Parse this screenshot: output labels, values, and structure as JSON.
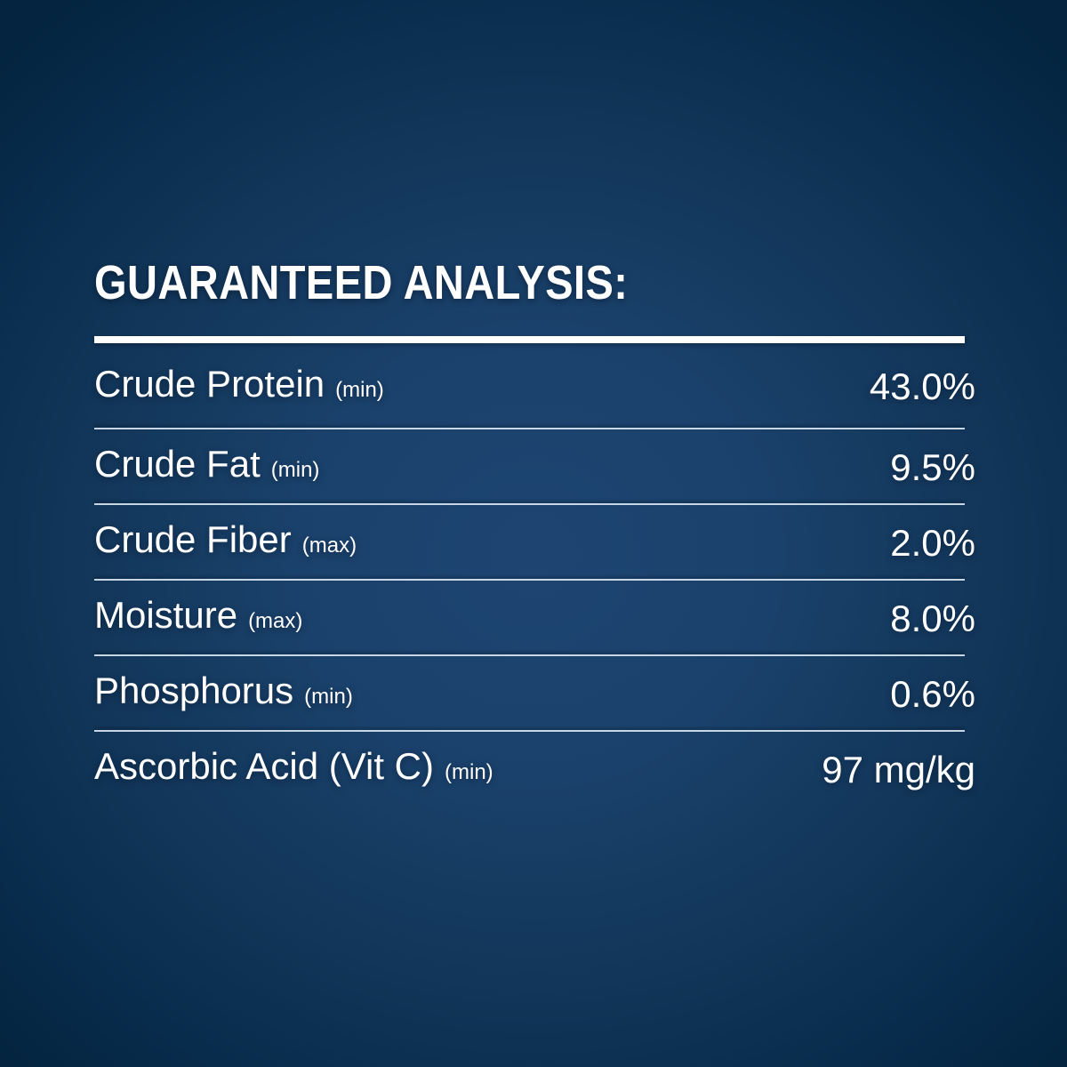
{
  "panel": {
    "background_center_color": "#1e4572",
    "background_edge_color": "#04243f",
    "text_color": "#ffffff",
    "divider_color": "#d6e4f0"
  },
  "analysis": {
    "title": "GUARANTEED ANALYSIS:",
    "rows": [
      {
        "label": "Crude Protein",
        "qualifier": "(min)",
        "value": "43.0%"
      },
      {
        "label": "Crude Fat",
        "qualifier": "(min)",
        "value": "9.5%"
      },
      {
        "label": "Crude Fiber",
        "qualifier": "(max)",
        "value": "2.0%"
      },
      {
        "label": "Moisture",
        "qualifier": "(max)",
        "value": "8.0%"
      },
      {
        "label": "Phosphorus",
        "qualifier": "(min)",
        "value": "0.6%"
      },
      {
        "label": "Ascorbic Acid (Vit C)",
        "qualifier": "(min)",
        "value": "97 mg/kg"
      }
    ]
  }
}
